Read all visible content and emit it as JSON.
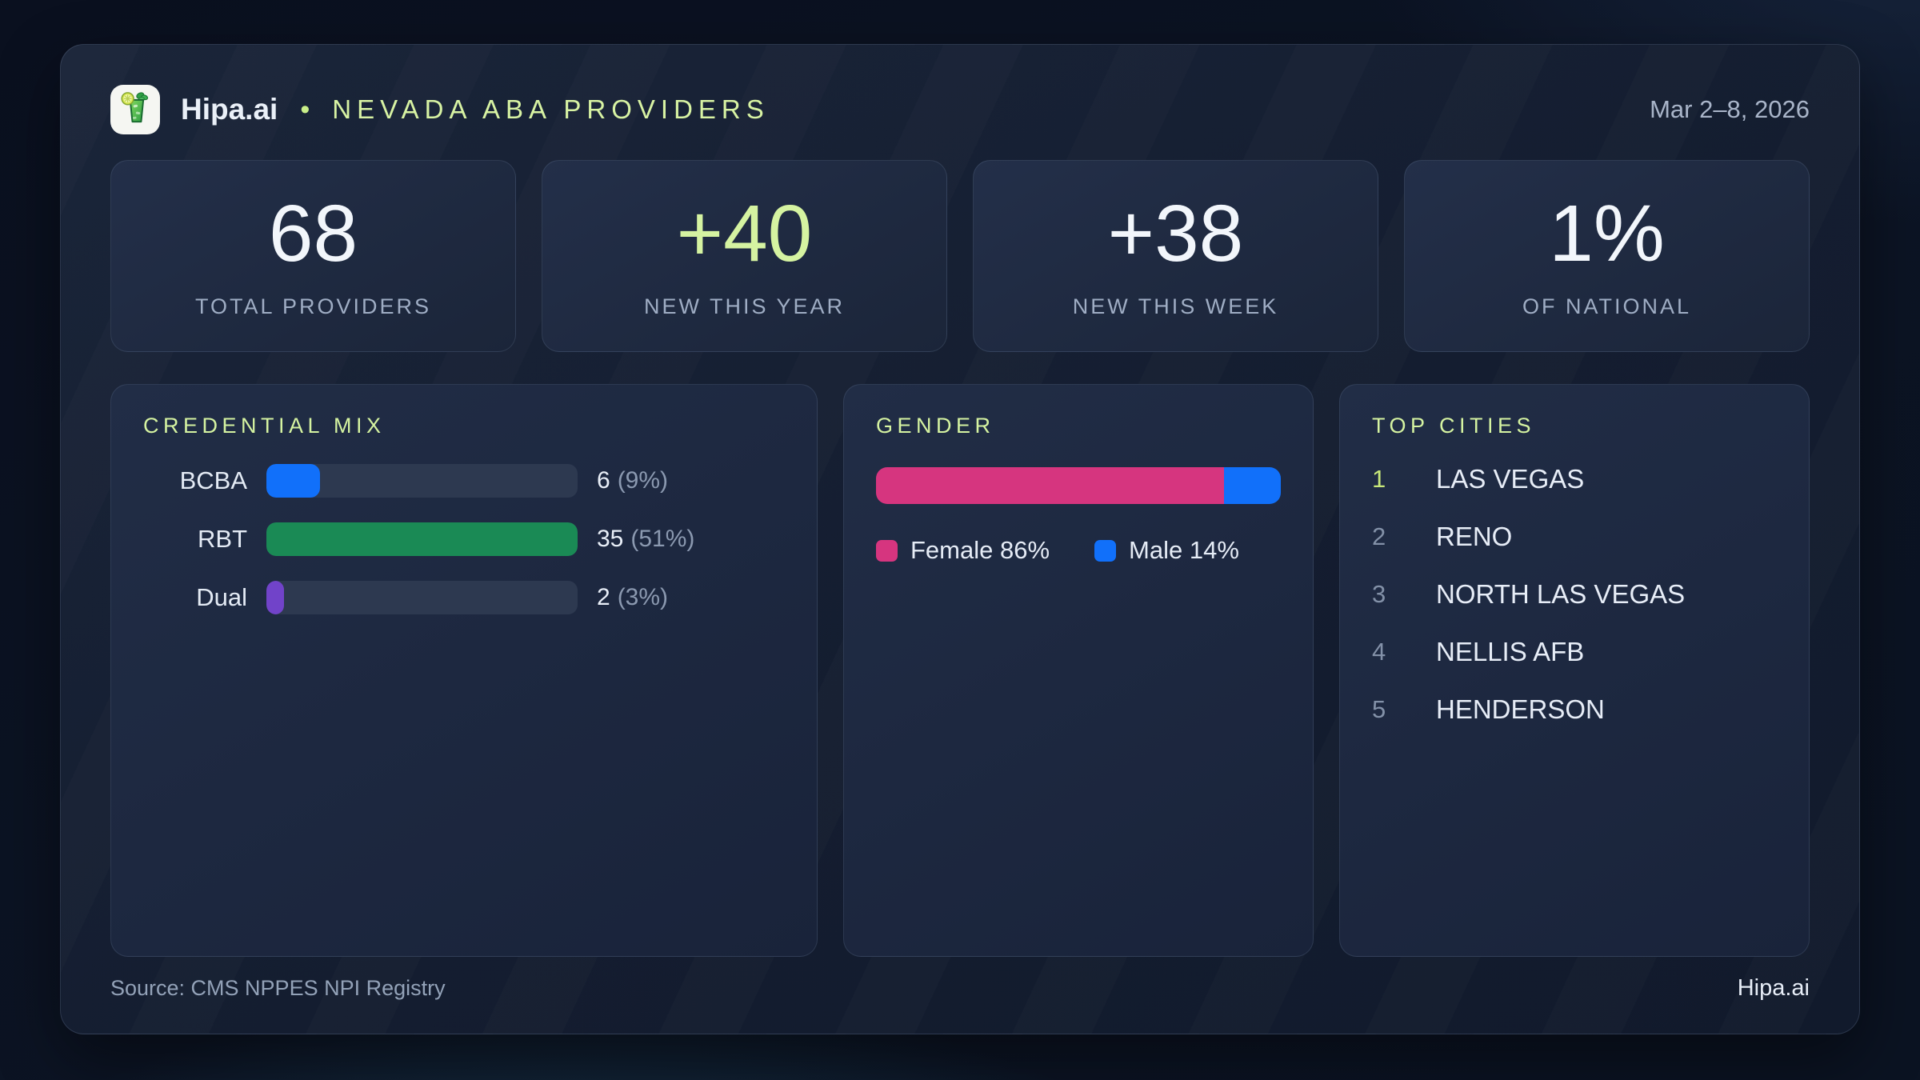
{
  "header": {
    "brand": "Hipa.ai",
    "separator": "•",
    "title": "NEVADA ABA PROVIDERS",
    "date_range": "Mar 2–8, 2026",
    "logo_icon": "mojito-glass-icon"
  },
  "stats": [
    {
      "value": "68",
      "label": "TOTAL PROVIDERS",
      "color": "#f2f6fb"
    },
    {
      "value": "+40",
      "label": "NEW THIS YEAR",
      "color": "#d5f3a1"
    },
    {
      "value": "+38",
      "label": "NEW THIS WEEK",
      "color": "#f2f6fb"
    },
    {
      "value": "1%",
      "label": "OF NATIONAL",
      "color": "#f2f6fb"
    }
  ],
  "chart_data": [
    {
      "type": "bar",
      "title": "CREDENTIAL MIX",
      "orientation": "horizontal",
      "categories": [
        "BCBA",
        "RBT",
        "Dual"
      ],
      "values": [
        6,
        35,
        2
      ],
      "percents": [
        9,
        51,
        3
      ],
      "value_labels": [
        "6",
        "35",
        "2"
      ],
      "percent_labels": [
        "(9%)",
        "(51%)",
        "(3%)"
      ],
      "bar_colors": [
        "#1170fa",
        "#1a8a55",
        "#7143c9"
      ],
      "track_color": "#2d3950",
      "xlim": [
        0,
        35
      ],
      "grid": false,
      "legend_position": "none"
    },
    {
      "type": "stacked-bar",
      "title": "GENDER",
      "segments": [
        {
          "label": "Female",
          "percent": 86,
          "color": "#d6357f"
        },
        {
          "label": "Male",
          "percent": 14,
          "color": "#1170fa"
        }
      ],
      "legend": [
        {
          "text": "Female 86%",
          "color": "#d6357f"
        },
        {
          "text": "Male 14%",
          "color": "#1170fa"
        }
      ],
      "legend_position": "bottom"
    }
  ],
  "top_cities": {
    "title": "TOP CITIES",
    "items": [
      {
        "rank": "1",
        "name": "LAS VEGAS"
      },
      {
        "rank": "2",
        "name": "RENO"
      },
      {
        "rank": "3",
        "name": "NORTH LAS VEGAS"
      },
      {
        "rank": "4",
        "name": "NELLIS AFB"
      },
      {
        "rank": "5",
        "name": "HENDERSON"
      }
    ]
  },
  "footer": {
    "source": "Source: CMS NPPES NPI Registry",
    "brand": "Hipa.ai"
  },
  "colors": {
    "accent_green": "#d5f3a1",
    "card_bg": "#18233a",
    "panel_bg": "#1d2840",
    "muted_text": "#9fadc4",
    "white_text": "#f2f6fb"
  }
}
